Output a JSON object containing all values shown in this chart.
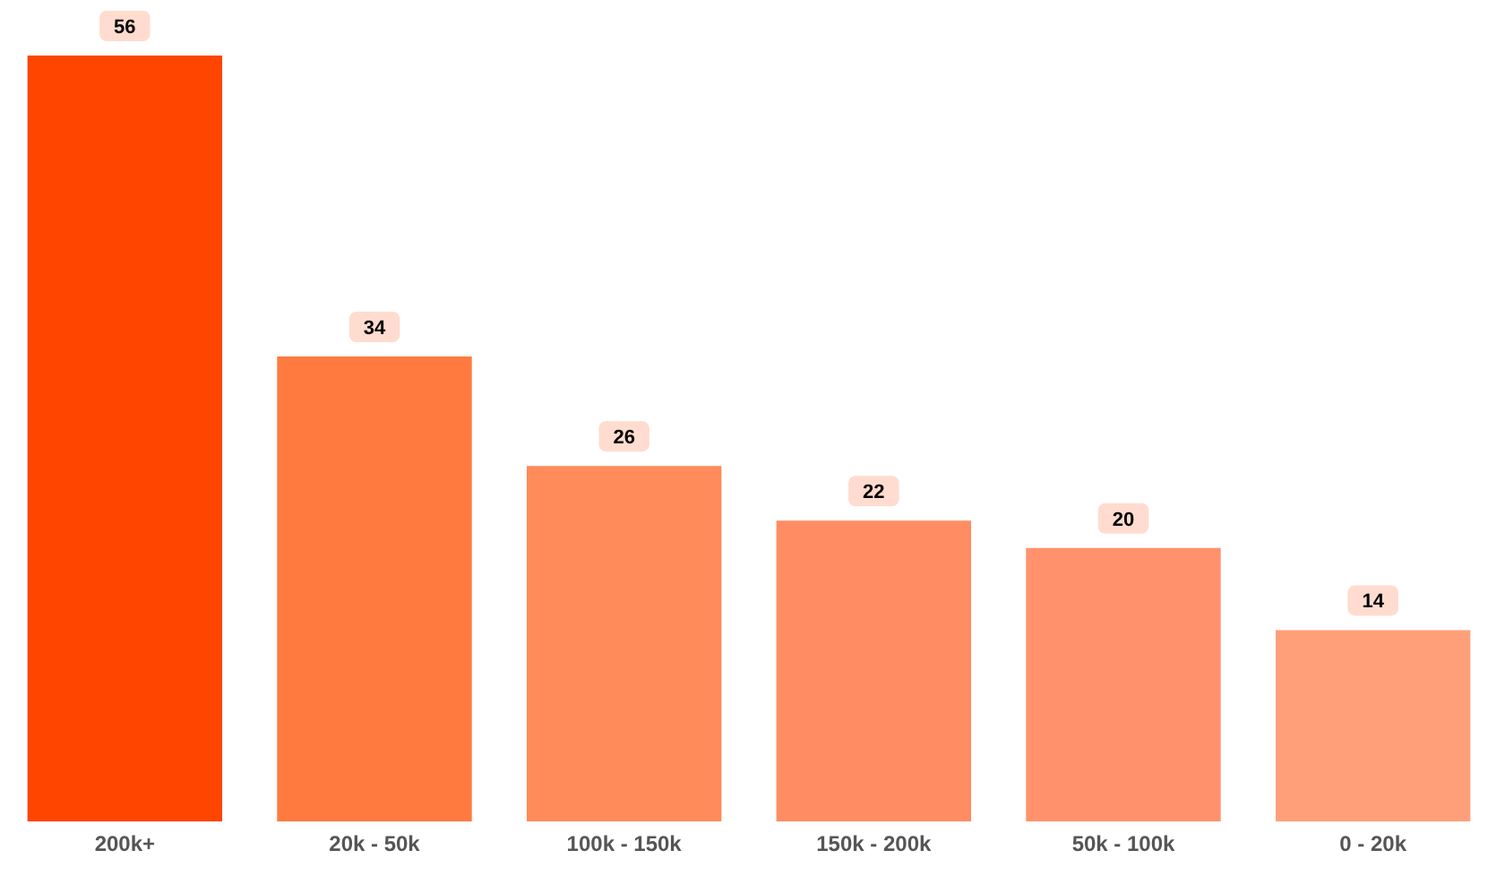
{
  "chart_data": {
    "type": "bar",
    "categories": [
      "200k+",
      "20k - 50k",
      "100k - 150k",
      "150k - 200k",
      "50k - 100k",
      "0 - 20k"
    ],
    "values": [
      56,
      34,
      26,
      22,
      20,
      14
    ],
    "colors": [
      "#ff4500",
      "#ff7a3f",
      "#ff8a5a",
      "#ff8c62",
      "#ff926c",
      "#ff9f7a"
    ],
    "data_labels": true,
    "grid": false,
    "legend": false
  }
}
